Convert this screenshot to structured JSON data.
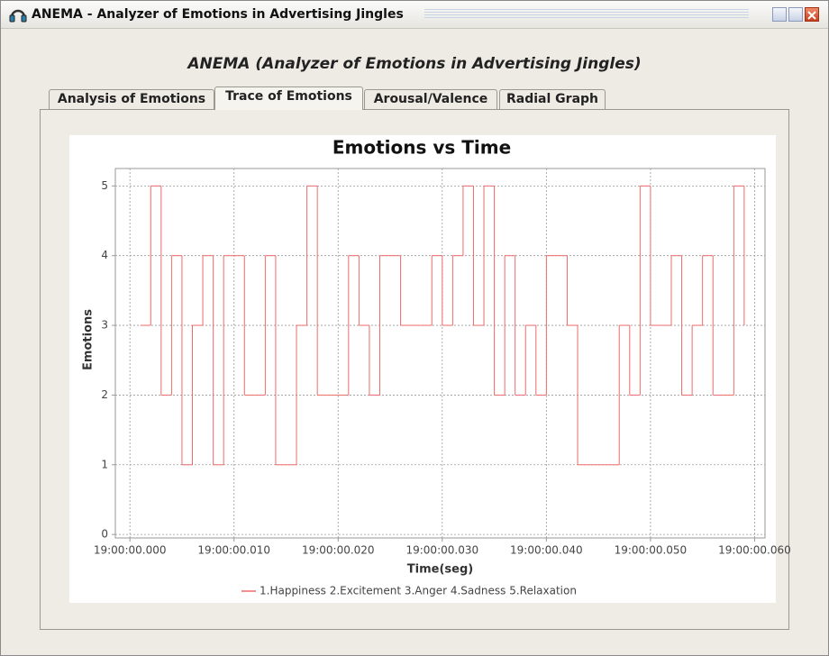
{
  "window_title": "ANEMA - Analyzer of Emotions in Advertising Jingles",
  "heading": "ANEMA (Analyzer of Emotions in Advertising Jingles)",
  "tabs": [
    "Analysis of Emotions",
    "Trace of Emotions",
    "Arousal/Valence",
    "Radial Graph"
  ],
  "chart_data": {
    "type": "step",
    "title": "Emotions vs Time",
    "x_label": "Time(seg)",
    "y_label": "Emotions",
    "x": [
      1,
      2,
      3,
      4,
      5,
      6,
      7,
      8,
      9,
      10,
      11,
      12,
      13,
      14,
      15,
      16,
      17,
      18,
      19,
      20,
      21,
      22,
      23,
      24,
      25,
      26,
      27,
      28,
      29,
      30,
      31,
      32,
      33,
      34,
      35,
      36,
      37,
      38,
      39,
      40,
      41,
      42,
      43,
      44,
      45,
      46,
      47,
      48,
      49,
      50,
      51,
      52,
      53,
      54,
      55,
      56,
      57,
      58,
      59
    ],
    "series": [
      {
        "name": "1.Happiness 2.Excitement 3.Anger 4.Sadness 5.Relaxation",
        "color": "#ee6b6b",
        "values": [
          3,
          5,
          2,
          4,
          1,
          3,
          4,
          1,
          4,
          4,
          2,
          2,
          4,
          1,
          1,
          3,
          5,
          2,
          2,
          2,
          4,
          3,
          2,
          4,
          4,
          3,
          3,
          3,
          4,
          3,
          4,
          5,
          3,
          5,
          2,
          4,
          2,
          3,
          2,
          4,
          4,
          3,
          1,
          1,
          1,
          1,
          3,
          2,
          5,
          3,
          3,
          4,
          2,
          3,
          4,
          2,
          2,
          5,
          3
        ]
      }
    ],
    "xlim": [
      -1.4,
      61
    ],
    "xticks": [
      {
        "value": 0,
        "label": "19:00:00.000"
      },
      {
        "value": 10,
        "label": "19:00:00.010"
      },
      {
        "value": 20,
        "label": "19:00:00.020"
      },
      {
        "value": 30,
        "label": "19:00:00.030"
      },
      {
        "value": 40,
        "label": "19:00:00.040"
      },
      {
        "value": 50,
        "label": "19:00:00.050"
      },
      {
        "value": 60,
        "label": "19:00:00.060"
      }
    ],
    "ylim": [
      -0.05,
      5.25
    ],
    "yticks": [
      0,
      1,
      2,
      3,
      4,
      5
    ],
    "grid": true,
    "legend": "bottom"
  }
}
